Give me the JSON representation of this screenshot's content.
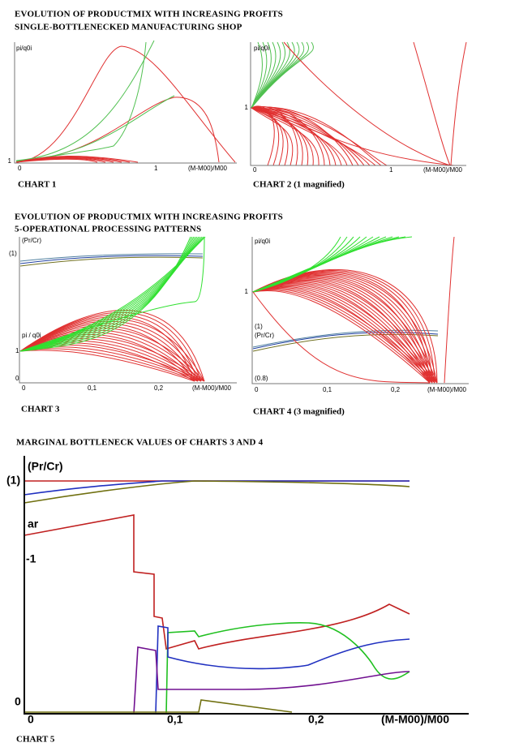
{
  "section1": {
    "title": "EVOLUTION OF PRODUCTMIX WITH INCREASING PROFITS",
    "subtitle": "SINGLE-BOTTLENECKED MANUFACTURING SHOP"
  },
  "chart1": {
    "caption": "CHART 1",
    "y_label": "pi/q0i",
    "y_tick": "1",
    "x_ticks": [
      "0",
      "1"
    ],
    "x_label": "(M-M00)/M00"
  },
  "chart2": {
    "caption": "CHART 2    (1 magnified)",
    "y_label": "pi/q0i",
    "y_tick": "1",
    "x_ticks": [
      "0",
      "1"
    ],
    "x_label": "(M-M00)/M00"
  },
  "section2": {
    "title": "EVOLUTION OF PRODUCTMIX WITH INCREASING PROFITS",
    "subtitle": "5-OPERATIONAL PROCESSING PATTERNS"
  },
  "chart3": {
    "caption": "CHART 3",
    "labels": [
      "(Pr/Cr)",
      "(1)",
      "pi / q0i",
      "1",
      "0"
    ],
    "x_ticks": [
      "0",
      "0,1",
      "0,2"
    ],
    "x_label": "(M-M00)/M00"
  },
  "chart4": {
    "caption": "CHART 4    (3 magnified)",
    "labels": [
      "pi/q0i",
      "1",
      "(1)",
      "(Pr/Cr)",
      "(0.8)"
    ],
    "x_ticks": [
      "0",
      "0,1",
      "0,2"
    ],
    "x_label": "(M-M00)/M00"
  },
  "section3": {
    "title": "MARGINAL BOTTLENECK VALUES OF CHARTS 3 AND 4"
  },
  "chart5": {
    "caption": "CHART 5",
    "labels": [
      "(Pr/Cr)",
      "(1)",
      "ar",
      "-1",
      "0"
    ],
    "x_ticks": [
      "0",
      "0,1",
      "0,2"
    ],
    "x_label": "(M-M00)/M00"
  }
}
